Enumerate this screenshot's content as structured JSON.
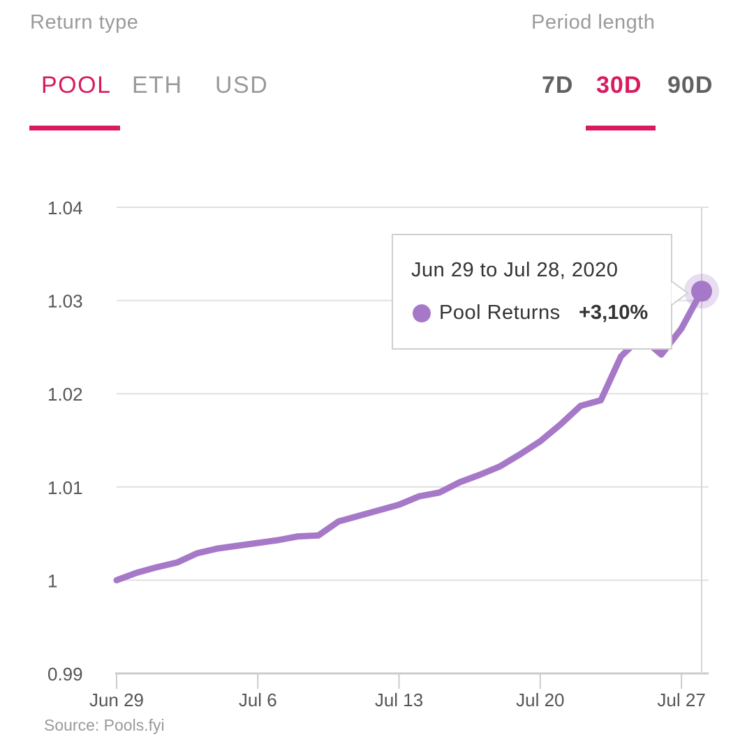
{
  "return_type": {
    "label": "Return type",
    "tabs": [
      {
        "label": "POOL",
        "active": true
      },
      {
        "label": "ETH",
        "active": false
      },
      {
        "label": "USD",
        "active": false
      }
    ]
  },
  "period": {
    "label": "Period length",
    "tabs": [
      {
        "label": "7D",
        "active": false
      },
      {
        "label": "30D",
        "active": true
      },
      {
        "label": "90D",
        "active": false
      }
    ]
  },
  "colors": {
    "accent": "#d81b60",
    "line": "#a678c8",
    "grid": "#e0e0e0"
  },
  "tooltip": {
    "title": "Jun 29 to Jul 28, 2020",
    "series": "Pool Returns",
    "value": "+3,10%"
  },
  "source": "Source: Pools.fyi",
  "chart_data": {
    "type": "line",
    "title": "",
    "xlabel": "",
    "ylabel": "",
    "ylim": [
      0.99,
      1.04
    ],
    "yticks": [
      "0.99",
      "1",
      "1.01",
      "1.02",
      "1.03",
      "1.04"
    ],
    "xticks": [
      "Jun 29",
      "Jul 6",
      "Jul 13",
      "Jul 20",
      "Jul 27"
    ],
    "x": [
      "Jun 29",
      "Jun 30",
      "Jul 1",
      "Jul 2",
      "Jul 3",
      "Jul 4",
      "Jul 5",
      "Jul 6",
      "Jul 7",
      "Jul 8",
      "Jul 9",
      "Jul 10",
      "Jul 11",
      "Jul 12",
      "Jul 13",
      "Jul 14",
      "Jul 15",
      "Jul 16",
      "Jul 17",
      "Jul 18",
      "Jul 19",
      "Jul 20",
      "Jul 21",
      "Jul 22",
      "Jul 23",
      "Jul 24",
      "Jul 25",
      "Jul 26",
      "Jul 27",
      "Jul 28"
    ],
    "series": [
      {
        "name": "Pool Returns",
        "values": [
          1.0,
          1.0008,
          1.0014,
          1.0019,
          1.0029,
          1.0034,
          1.0037,
          1.004,
          1.0043,
          1.0047,
          1.0048,
          1.0063,
          1.0069,
          1.0075,
          1.0081,
          1.009,
          1.0094,
          1.0105,
          1.0113,
          1.0122,
          1.0135,
          1.0149,
          1.0167,
          1.0187,
          1.0193,
          1.024,
          1.0261,
          1.0242,
          1.027,
          1.031
        ]
      }
    ],
    "grid": true,
    "highlighted_point": "Jul 28"
  }
}
